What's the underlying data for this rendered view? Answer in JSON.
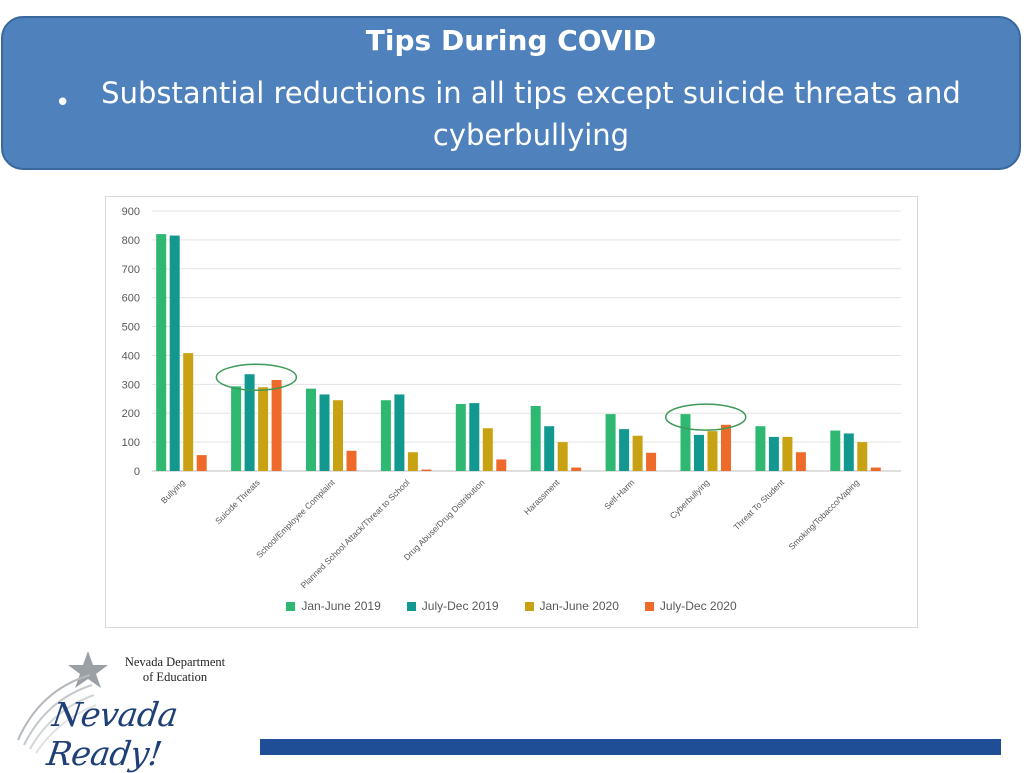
{
  "header": {
    "title": "Tips During COVID",
    "bullet": "Substantial reductions in all tips except suicide threats and cyberbullying"
  },
  "chart_data": {
    "type": "bar",
    "categories": [
      "Bullying",
      "Suicide Threats",
      "School/Employee Complaint",
      "Planned School Attack/Threat to School",
      "Drug Abuse/Drug Distribution",
      "Harassment",
      "Self-Harm",
      "Cyberbullying",
      "Threat To Student",
      "Smoking/Tobacco/Vaping"
    ],
    "series": [
      {
        "name": "Jan-June 2019",
        "color": "#2eb872",
        "values": [
          820,
          293,
          285,
          245,
          232,
          225,
          197,
          197,
          155,
          140
        ]
      },
      {
        "name": "July-Dec 2019",
        "color": "#13988f",
        "values": [
          815,
          335,
          265,
          265,
          235,
          155,
          145,
          125,
          118,
          130
        ]
      },
      {
        "name": "Jan-June 2020",
        "color": "#c9a213",
        "values": [
          408,
          290,
          245,
          65,
          148,
          100,
          122,
          138,
          118,
          100
        ]
      },
      {
        "name": "July-Dec 2020",
        "color": "#ee6a2a",
        "values": [
          55,
          315,
          70,
          5,
          40,
          12,
          63,
          160,
          65,
          12
        ]
      }
    ],
    "ylim": [
      0,
      900
    ],
    "yticks": [
      0,
      100,
      200,
      300,
      400,
      500,
      600,
      700,
      800,
      900
    ],
    "grid": true,
    "legend": "bottom",
    "highlighted_categories": [
      "Suicide Threats",
      "Cyberbullying"
    ]
  },
  "logo": {
    "agency_line1": "Nevada Department",
    "agency_line2": "of Education",
    "script": "Nevada Ready!"
  }
}
